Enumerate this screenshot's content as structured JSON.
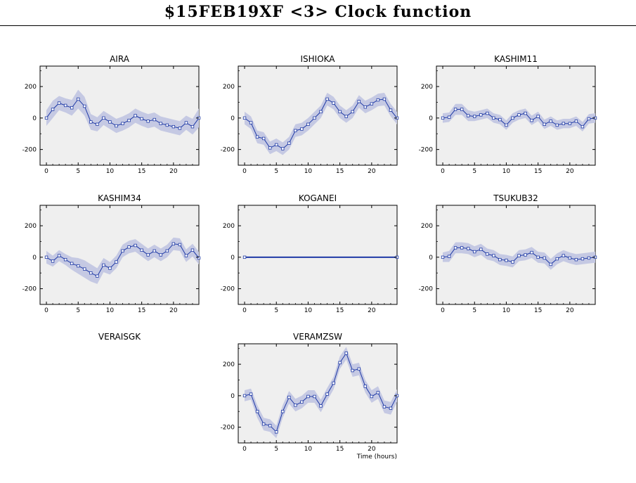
{
  "title": "$15FEB19XF <3>  Clock function",
  "chart_data": [
    {
      "type": "line",
      "title": "AIRA",
      "x": [
        0,
        1,
        2,
        3,
        4,
        5,
        6,
        7,
        8,
        9,
        10,
        11,
        12,
        13,
        14,
        15,
        16,
        17,
        18,
        19,
        20,
        21,
        22,
        23,
        24
      ],
      "values": [
        0,
        55,
        95,
        80,
        65,
        120,
        75,
        -25,
        -40,
        0,
        -25,
        -50,
        -35,
        -15,
        15,
        -5,
        -20,
        -10,
        -35,
        -45,
        -55,
        -65,
        -30,
        -55,
        0
      ],
      "band": [
        50,
        55,
        45,
        45,
        50,
        60,
        60,
        50,
        45,
        45,
        45,
        45,
        45,
        45,
        45,
        45,
        45,
        45,
        45,
        45,
        45,
        45,
        45,
        50,
        60
      ],
      "xlim": [
        -1,
        24
      ],
      "ylim": [
        -300,
        330
      ],
      "xticks": [
        0,
        5,
        10,
        15,
        20
      ],
      "yticks": [
        -200,
        0,
        200
      ]
    },
    {
      "type": "line",
      "title": "ISHIOKA",
      "x": [
        0,
        1,
        2,
        3,
        4,
        5,
        6,
        7,
        8,
        9,
        10,
        11,
        12,
        13,
        14,
        15,
        16,
        17,
        18,
        19,
        20,
        21,
        22,
        23,
        24
      ],
      "values": [
        0,
        -30,
        -120,
        -130,
        -190,
        -170,
        -195,
        -160,
        -80,
        -70,
        -40,
        0,
        40,
        120,
        95,
        40,
        10,
        40,
        105,
        70,
        90,
        115,
        120,
        50,
        0
      ],
      "band": [
        40,
        40,
        40,
        40,
        40,
        40,
        40,
        40,
        40,
        40,
        40,
        40,
        40,
        40,
        40,
        40,
        40,
        40,
        40,
        40,
        40,
        40,
        40,
        40,
        40
      ],
      "xlim": [
        -1,
        24
      ],
      "ylim": [
        -300,
        330
      ],
      "xticks": [
        0,
        5,
        10,
        15,
        20
      ],
      "yticks": [
        -200,
        0,
        200
      ]
    },
    {
      "type": "line",
      "title": "KASHIM11",
      "x": [
        0,
        1,
        2,
        3,
        4,
        5,
        6,
        7,
        8,
        9,
        10,
        11,
        12,
        13,
        14,
        15,
        16,
        17,
        18,
        19,
        20,
        21,
        22,
        23,
        24
      ],
      "values": [
        0,
        5,
        55,
        55,
        15,
        10,
        20,
        30,
        0,
        -10,
        -45,
        0,
        20,
        30,
        -15,
        10,
        -40,
        -20,
        -45,
        -35,
        -35,
        -20,
        -55,
        -5,
        0
      ],
      "band": [
        30,
        30,
        35,
        35,
        35,
        30,
        30,
        30,
        30,
        30,
        30,
        30,
        30,
        30,
        30,
        30,
        30,
        30,
        30,
        30,
        30,
        30,
        30,
        30,
        30
      ],
      "xlim": [
        -1,
        24
      ],
      "ylim": [
        -300,
        330
      ],
      "xticks": [
        0,
        5,
        10,
        15,
        20
      ],
      "yticks": [
        -200,
        0,
        200
      ]
    },
    {
      "type": "line",
      "title": "KASHIM34",
      "x": [
        0,
        1,
        2,
        3,
        4,
        5,
        6,
        7,
        8,
        9,
        10,
        11,
        12,
        13,
        14,
        15,
        16,
        17,
        18,
        19,
        20,
        21,
        22,
        23,
        24
      ],
      "values": [
        0,
        -25,
        10,
        -15,
        -40,
        -55,
        -75,
        -100,
        -120,
        -50,
        -70,
        -30,
        40,
        65,
        75,
        45,
        15,
        40,
        15,
        40,
        85,
        80,
        10,
        45,
        -5
      ],
      "band": [
        40,
        35,
        35,
        35,
        40,
        50,
        55,
        55,
        50,
        45,
        40,
        40,
        40,
        40,
        40,
        40,
        40,
        40,
        40,
        40,
        40,
        40,
        40,
        40,
        40
      ],
      "xlim": [
        -1,
        24
      ],
      "ylim": [
        -300,
        330
      ],
      "xticks": [
        0,
        5,
        10,
        15,
        20
      ],
      "yticks": [
        -200,
        0,
        200
      ]
    },
    {
      "type": "line",
      "title": "KOGANEI",
      "x": [
        0,
        24
      ],
      "values": [
        0,
        0
      ],
      "band": [
        0,
        0
      ],
      "xlim": [
        -1,
        24
      ],
      "ylim": [
        -300,
        330
      ],
      "xticks": [
        0,
        5,
        10,
        15,
        20
      ],
      "yticks": [
        -200,
        0,
        200
      ]
    },
    {
      "type": "line",
      "title": "TSUKUB32",
      "x": [
        0,
        1,
        2,
        3,
        4,
        5,
        6,
        7,
        8,
        9,
        10,
        11,
        12,
        13,
        14,
        15,
        16,
        17,
        18,
        19,
        20,
        21,
        22,
        23,
        24
      ],
      "values": [
        0,
        5,
        60,
        60,
        55,
        35,
        50,
        20,
        10,
        -15,
        -20,
        -30,
        10,
        15,
        30,
        0,
        -5,
        -45,
        -10,
        10,
        -5,
        -15,
        -10,
        -5,
        0
      ],
      "band": [
        30,
        35,
        35,
        35,
        35,
        35,
        35,
        35,
        35,
        35,
        35,
        35,
        35,
        35,
        35,
        35,
        35,
        35,
        35,
        35,
        35,
        35,
        35,
        35,
        35
      ],
      "xlim": [
        -1,
        24
      ],
      "ylim": [
        -300,
        330
      ],
      "xticks": [
        0,
        5,
        10,
        15,
        20
      ],
      "yticks": [
        -200,
        0,
        200
      ]
    },
    {
      "type": "line",
      "title": "VERAISGK",
      "x": [],
      "values": [],
      "band": [],
      "empty": true
    },
    {
      "type": "line",
      "title": "VERAMZSW",
      "x": [
        0,
        1,
        2,
        3,
        4,
        5,
        6,
        7,
        8,
        9,
        10,
        11,
        12,
        13,
        14,
        15,
        16,
        17,
        18,
        19,
        20,
        21,
        22,
        23,
        24
      ],
      "values": [
        0,
        10,
        -100,
        -180,
        -190,
        -230,
        -100,
        -10,
        -60,
        -40,
        -5,
        -5,
        -65,
        10,
        80,
        210,
        270,
        160,
        170,
        60,
        -5,
        20,
        -70,
        -80,
        0
      ],
      "band": [
        35,
        35,
        40,
        40,
        40,
        40,
        40,
        40,
        40,
        40,
        40,
        40,
        40,
        40,
        40,
        40,
        40,
        40,
        40,
        40,
        40,
        40,
        40,
        40,
        40
      ],
      "xlim": [
        -1,
        24
      ],
      "ylim": [
        -300,
        330
      ],
      "xticks": [
        0,
        5,
        10,
        15,
        20
      ],
      "yticks": [
        -200,
        0,
        200
      ],
      "xlabel": "Time (hours)"
    }
  ]
}
